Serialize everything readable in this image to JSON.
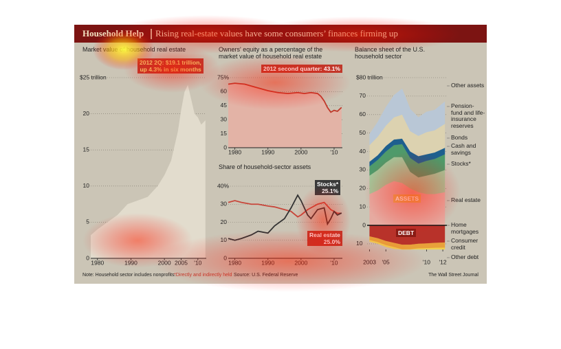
{
  "header": {
    "title": "Household Help",
    "subtitle": "Rising real-estate values have some consumers’ finances firming up"
  },
  "footer": {
    "note": "Note: Household sector includes nonprofits.",
    "footnote": "*Directly and indirectly held",
    "source": "Source: U.S. Federal Reserve",
    "credit": "The Wall Street Journal"
  },
  "chart_data": [
    {
      "type": "area",
      "title": "Market value of household real estate",
      "color": "#e2dccd",
      "x": [
        1978,
        1980,
        1983,
        1986,
        1989,
        1992,
        1995,
        1998,
        2000,
        2002,
        2004,
        2005,
        2006,
        2007,
        2008,
        2009,
        2010,
        2011,
        2012.25
      ],
      "values": [
        3.2,
        4,
        5,
        6,
        7.5,
        8,
        8.5,
        10,
        11.5,
        13.5,
        17.5,
        20.5,
        23,
        24,
        22,
        20,
        19.5,
        18.5,
        19.1
      ],
      "xlim": [
        1978,
        2012.5
      ],
      "ylim": [
        0,
        25
      ],
      "xticks": [
        1980,
        1990,
        2000,
        2005,
        {
          "value": 2010,
          "label": "'10"
        }
      ],
      "yticks": [
        0,
        5,
        10,
        15,
        20,
        {
          "value": 25,
          "label": "$25 trillion"
        }
      ],
      "grid": true,
      "annotation": [
        "2012 2Q: $19.1 trillion,",
        "up 4.3% in six months"
      ]
    },
    {
      "type": "line",
      "title": "Owners' equity as a percentage of the market value of household real estate",
      "color": "#c0392b",
      "area_color": "#e3b3a6",
      "x": [
        1978,
        1980,
        1983,
        1986,
        1990,
        1993,
        1996,
        1999,
        2001,
        2003,
        2005,
        2006,
        2007,
        2008,
        2009,
        2010,
        2011,
        2012.25
      ],
      "values": [
        68,
        69,
        68,
        65,
        61,
        59,
        58,
        59,
        58,
        59,
        58,
        55,
        50,
        43,
        38,
        40,
        39,
        43.1
      ],
      "xlim": [
        1978,
        2012.5
      ],
      "ylim": [
        0,
        75
      ],
      "xticks": [
        1980,
        1990,
        2000,
        {
          "value": 2010,
          "label": "'10"
        }
      ],
      "yticks": [
        0,
        15,
        30,
        45,
        60,
        {
          "value": 75,
          "label": "75%"
        }
      ],
      "grid": true,
      "annotation": [
        "2012 second quarter: 43.1%"
      ]
    },
    {
      "type": "line",
      "title": "Share of household-sector assets",
      "x": [
        1978,
        1980,
        1982,
        1985,
        1987,
        1990,
        1992,
        1995,
        1997,
        1999,
        2000,
        2002,
        2003,
        2005,
        2007,
        2008,
        2009,
        2010,
        2011,
        2012.25
      ],
      "series": [
        {
          "name": "Real estate",
          "label": "25.0%",
          "color": "#c8463a",
          "values": [
            31,
            32,
            31,
            30,
            30,
            29,
            28.5,
            27,
            26,
            23,
            24,
            27,
            28,
            30,
            31,
            29,
            27,
            26,
            25,
            25.0
          ]
        },
        {
          "name": "Stocks*",
          "label": "25.1%",
          "color": "#333333",
          "values": [
            11,
            10,
            11,
            13,
            15,
            14,
            18,
            22,
            28,
            35,
            32,
            24,
            22,
            27,
            28,
            19,
            22,
            26,
            24,
            25.1
          ]
        }
      ],
      "xlim": [
        1978,
        2012.5
      ],
      "ylim": [
        0,
        40
      ],
      "xticks": [
        1980,
        1990,
        2000,
        {
          "value": 2010,
          "label": "'10"
        }
      ],
      "yticks": [
        0,
        10,
        20,
        30,
        {
          "value": 40,
          "label": "40%"
        }
      ],
      "grid": true
    },
    {
      "type": "stacked_area",
      "title": "Balance sheet of the U.S. household sector",
      "x": [
        2003,
        2004,
        2005,
        2006,
        2007,
        2008,
        2009,
        2010,
        2011,
        2012.25
      ],
      "series": [
        {
          "name": "Real estate",
          "color": "#e6aaa0",
          "values": [
            17,
            19,
            22,
            24,
            23,
            20,
            18,
            17,
            17,
            18
          ]
        },
        {
          "name": "Stocks*",
          "color": "#a2c89b",
          "values": [
            10,
            11,
            12,
            13,
            14,
            9,
            8,
            10,
            11,
            12
          ]
        },
        {
          "name": "Cash and savings",
          "color": "#4f9a6a",
          "values": [
            5,
            5.5,
            6,
            6.5,
            7,
            7.5,
            7.5,
            8,
            8,
            8.5
          ]
        },
        {
          "name": "Bonds",
          "color": "#1d5f8e",
          "values": [
            2.5,
            2.5,
            3,
            3,
            3,
            3.5,
            4,
            3.5,
            3.5,
            3.5
          ]
        },
        {
          "name": "Pension-fund and life-insurance reserves",
          "color": "#dcd2b0",
          "values": [
            9,
            10,
            11,
            12,
            13,
            11,
            11,
            12,
            12,
            13
          ]
        },
        {
          "name": "Other assets",
          "color": "#b9c7d6",
          "values": [
            6,
            8,
            10,
            12,
            14,
            12,
            10,
            11,
            11,
            12
          ]
        },
        {
          "name": "Home mortgages",
          "color": "#b8322a",
          "values": [
            -6,
            -7,
            -8.5,
            -9.5,
            -10.5,
            -10.5,
            -10,
            -9.8,
            -9.5,
            -9.3
          ]
        },
        {
          "name": "Consumer credit",
          "color": "#e8a13a",
          "values": [
            -2,
            -2.1,
            -2.2,
            -2.3,
            -2.5,
            -2.6,
            -2.5,
            -2.6,
            -2.7,
            -2.8
          ]
        },
        {
          "name": "Other debt",
          "color": "#f0d050",
          "values": [
            -0.8,
            -0.8,
            -0.9,
            -0.9,
            -1,
            -1,
            -1,
            -1,
            -1,
            -1
          ]
        }
      ],
      "xlim": [
        2002.7,
        2012.5
      ],
      "ylim": [
        -13,
        80
      ],
      "xticks": [
        2003,
        {
          "value": 2005,
          "label": "'05"
        },
        {
          "value": 2010,
          "label": "'10"
        },
        {
          "value": 2012,
          "label": "'12"
        }
      ],
      "yticks": [
        {
          "value": -10,
          "label": "10"
        },
        0,
        10,
        20,
        30,
        40,
        50,
        60,
        70,
        {
          "value": 80,
          "label": "$80 trillion"
        }
      ],
      "grid": true,
      "annotations": [
        "ASSETS",
        "DEBT"
      ]
    }
  ]
}
